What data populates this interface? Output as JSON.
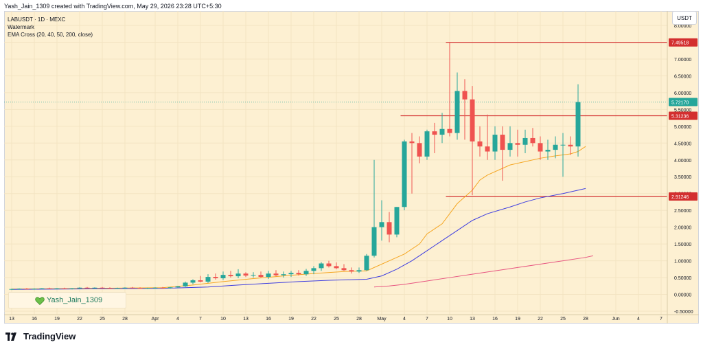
{
  "header": {
    "credit": "Yash_Jain_1309 created with TradingView.com, May 29, 2026 23:28 UTC+5:30"
  },
  "legend": {
    "symbol": "LABUSDT · 1D · MEXC",
    "watermark": "Watermark",
    "indicator": "EMA Cross (20, 40, 50, 200, close)"
  },
  "currency_badge": "USDT",
  "watermark_label": "Yash_Jain_1309",
  "footer": {
    "brand": "TradingView"
  },
  "colors": {
    "up": "#26a69a",
    "down": "#ef5350",
    "ema_fast": "#f5a623",
    "ema_mid": "#3d3de0",
    "ema_slow": "#e75480",
    "level_line": "#d32f2f",
    "background": "#fdf0d2"
  },
  "chart_data": {
    "type": "candlestick",
    "ylim": [
      -0.5,
      8.0
    ],
    "y_ticks": [
      "-0.50000",
      "0.00000",
      "0.50000",
      "1.00000",
      "1.50000",
      "2.00000",
      "2.50000",
      "3.00000",
      "3.50000",
      "4.00000",
      "4.50000",
      "5.00000",
      "5.50000",
      "6.00000",
      "6.50000",
      "7.00000",
      "7.50000",
      "8.00000"
    ],
    "x_ticks": [
      {
        "i": 0,
        "label": "13"
      },
      {
        "i": 3,
        "label": "16"
      },
      {
        "i": 6,
        "label": "19"
      },
      {
        "i": 9,
        "label": "22"
      },
      {
        "i": 12,
        "label": "25"
      },
      {
        "i": 15,
        "label": "28"
      },
      {
        "i": 19,
        "label": "Apr"
      },
      {
        "i": 22,
        "label": "4"
      },
      {
        "i": 25,
        "label": "7"
      },
      {
        "i": 28,
        "label": "10"
      },
      {
        "i": 31,
        "label": "13"
      },
      {
        "i": 34,
        "label": "16"
      },
      {
        "i": 37,
        "label": "19"
      },
      {
        "i": 40,
        "label": "22"
      },
      {
        "i": 43,
        "label": "25"
      },
      {
        "i": 46,
        "label": "28"
      },
      {
        "i": 49,
        "label": "May"
      },
      {
        "i": 52,
        "label": "4"
      },
      {
        "i": 55,
        "label": "7"
      },
      {
        "i": 58,
        "label": "10"
      },
      {
        "i": 61,
        "label": "13"
      },
      {
        "i": 64,
        "label": "16"
      },
      {
        "i": 67,
        "label": "19"
      },
      {
        "i": 70,
        "label": "22"
      },
      {
        "i": 73,
        "label": "25"
      },
      {
        "i": 76,
        "label": "28"
      },
      {
        "i": 80,
        "label": "Jun"
      },
      {
        "i": 83,
        "label": "4"
      },
      {
        "i": 86,
        "label": "7"
      }
    ],
    "candles": [
      [
        0.15,
        0.17,
        0.13,
        0.16
      ],
      [
        0.16,
        0.18,
        0.14,
        0.17
      ],
      [
        0.17,
        0.19,
        0.15,
        0.16
      ],
      [
        0.16,
        0.18,
        0.14,
        0.17
      ],
      [
        0.17,
        0.19,
        0.15,
        0.18
      ],
      [
        0.18,
        0.2,
        0.16,
        0.17
      ],
      [
        0.17,
        0.19,
        0.15,
        0.18
      ],
      [
        0.18,
        0.2,
        0.16,
        0.17
      ],
      [
        0.17,
        0.19,
        0.15,
        0.18
      ],
      [
        0.18,
        0.21,
        0.16,
        0.2
      ],
      [
        0.2,
        0.22,
        0.18,
        0.19
      ],
      [
        0.19,
        0.21,
        0.17,
        0.2
      ],
      [
        0.2,
        0.22,
        0.18,
        0.19
      ],
      [
        0.19,
        0.21,
        0.17,
        0.18
      ],
      [
        0.18,
        0.2,
        0.16,
        0.19
      ],
      [
        0.19,
        0.21,
        0.17,
        0.2
      ],
      [
        0.2,
        0.22,
        0.18,
        0.19
      ],
      [
        0.19,
        0.21,
        0.17,
        0.18
      ],
      [
        0.18,
        0.2,
        0.16,
        0.19
      ],
      [
        0.19,
        0.21,
        0.17,
        0.2
      ],
      [
        0.2,
        0.22,
        0.18,
        0.19
      ],
      [
        0.19,
        0.22,
        0.17,
        0.21
      ],
      [
        0.21,
        0.25,
        0.19,
        0.24
      ],
      [
        0.24,
        0.38,
        0.22,
        0.35
      ],
      [
        0.35,
        0.45,
        0.3,
        0.42
      ],
      [
        0.42,
        0.55,
        0.36,
        0.38
      ],
      [
        0.38,
        0.6,
        0.34,
        0.52
      ],
      [
        0.52,
        0.62,
        0.44,
        0.48
      ],
      [
        0.48,
        0.68,
        0.43,
        0.58
      ],
      [
        0.58,
        0.7,
        0.5,
        0.54
      ],
      [
        0.54,
        0.75,
        0.48,
        0.62
      ],
      [
        0.62,
        0.66,
        0.52,
        0.56
      ],
      [
        0.56,
        0.66,
        0.5,
        0.58
      ],
      [
        0.58,
        0.68,
        0.5,
        0.52
      ],
      [
        0.52,
        0.7,
        0.46,
        0.62
      ],
      [
        0.62,
        0.72,
        0.54,
        0.57
      ],
      [
        0.57,
        0.68,
        0.5,
        0.6
      ],
      [
        0.6,
        0.7,
        0.52,
        0.64
      ],
      [
        0.64,
        0.72,
        0.56,
        0.6
      ],
      [
        0.6,
        0.76,
        0.55,
        0.7
      ],
      [
        0.7,
        0.84,
        0.6,
        0.78
      ],
      [
        0.78,
        0.96,
        0.7,
        0.92
      ],
      [
        0.92,
        1.0,
        0.8,
        0.84
      ],
      [
        0.84,
        0.95,
        0.75,
        0.78
      ],
      [
        0.78,
        0.9,
        0.7,
        0.72
      ],
      [
        0.72,
        0.8,
        0.62,
        0.68
      ],
      [
        0.68,
        0.8,
        0.64,
        0.72
      ],
      [
        0.72,
        1.2,
        0.7,
        1.15
      ],
      [
        1.15,
        4.0,
        1.1,
        2.0
      ],
      [
        2.0,
        2.8,
        1.6,
        2.15
      ],
      [
        2.15,
        2.45,
        1.55,
        1.78
      ],
      [
        1.78,
        2.6,
        1.7,
        2.6
      ],
      [
        2.6,
        4.6,
        2.5,
        4.55
      ],
      [
        4.55,
        4.8,
        3.0,
        4.5
      ],
      [
        4.5,
        4.7,
        3.9,
        4.1
      ],
      [
        4.1,
        4.9,
        4.0,
        4.85
      ],
      [
        4.85,
        5.1,
        4.2,
        4.75
      ],
      [
        4.75,
        5.4,
        4.5,
        4.92
      ],
      [
        4.92,
        7.5,
        4.7,
        4.8
      ],
      [
        4.8,
        6.6,
        4.6,
        6.05
      ],
      [
        6.05,
        6.4,
        4.6,
        5.8
      ],
      [
        5.8,
        6.2,
        2.95,
        4.55
      ],
      [
        4.55,
        5.0,
        4.1,
        4.4
      ],
      [
        4.4,
        5.35,
        4.0,
        4.25
      ],
      [
        4.25,
        5.0,
        4.0,
        4.75
      ],
      [
        4.75,
        5.0,
        3.38,
        4.3
      ],
      [
        4.3,
        5.0,
        4.1,
        4.5
      ],
      [
        4.5,
        4.9,
        4.1,
        4.45
      ],
      [
        4.45,
        4.9,
        4.2,
        4.65
      ],
      [
        4.65,
        4.95,
        4.4,
        4.5
      ],
      [
        4.5,
        4.7,
        4.0,
        4.25
      ],
      [
        4.25,
        4.6,
        4.0,
        4.3
      ],
      [
        4.3,
        4.7,
        4.05,
        4.45
      ],
      [
        4.45,
        4.8,
        3.5,
        4.45
      ],
      [
        4.45,
        4.7,
        4.15,
        4.4
      ],
      [
        4.4,
        6.25,
        4.1,
        5.72
      ]
    ],
    "ema_fast": [
      [
        0,
        0.16
      ],
      [
        20,
        0.2
      ],
      [
        24,
        0.28
      ],
      [
        28,
        0.38
      ],
      [
        32,
        0.47
      ],
      [
        36,
        0.55
      ],
      [
        40,
        0.62
      ],
      [
        44,
        0.68
      ],
      [
        47,
        0.7
      ],
      [
        48,
        0.8
      ],
      [
        50,
        1.0
      ],
      [
        52,
        1.2
      ],
      [
        54,
        1.5
      ],
      [
        55,
        1.8
      ],
      [
        57,
        2.1
      ],
      [
        59,
        2.7
      ],
      [
        61,
        3.1
      ],
      [
        62,
        3.4
      ],
      [
        63,
        3.55
      ],
      [
        65,
        3.75
      ],
      [
        66,
        3.85
      ],
      [
        68,
        3.95
      ],
      [
        70,
        4.05
      ],
      [
        72,
        4.12
      ],
      [
        74,
        4.18
      ],
      [
        75,
        4.25
      ],
      [
        76,
        4.4
      ]
    ],
    "ema_mid": [
      [
        0,
        0.15
      ],
      [
        20,
        0.18
      ],
      [
        26,
        0.22
      ],
      [
        30,
        0.28
      ],
      [
        34,
        0.33
      ],
      [
        38,
        0.38
      ],
      [
        42,
        0.42
      ],
      [
        47,
        0.45
      ],
      [
        49,
        0.55
      ],
      [
        51,
        0.75
      ],
      [
        53,
        1.0
      ],
      [
        55,
        1.3
      ],
      [
        57,
        1.6
      ],
      [
        59,
        1.9
      ],
      [
        61,
        2.2
      ],
      [
        63,
        2.4
      ],
      [
        66,
        2.6
      ],
      [
        68,
        2.75
      ],
      [
        70,
        2.87
      ],
      [
        73,
        3.0
      ],
      [
        76,
        3.15
      ]
    ],
    "ema_slow": [
      [
        48,
        0.22
      ],
      [
        50,
        0.25
      ],
      [
        52,
        0.3
      ],
      [
        55,
        0.4
      ],
      [
        58,
        0.5
      ],
      [
        61,
        0.6
      ],
      [
        64,
        0.7
      ],
      [
        67,
        0.8
      ],
      [
        70,
        0.9
      ],
      [
        73,
        1.0
      ],
      [
        76,
        1.1
      ],
      [
        77,
        1.15
      ]
    ],
    "levels": [
      {
        "value": 7.49518,
        "label": "7.49518",
        "x_start": 57.5
      },
      {
        "value": 5.31236,
        "label": "5.31236",
        "x_start": 51.5
      },
      {
        "value": 2.91246,
        "label": "2.91246",
        "x_start": 57.5
      }
    ],
    "last_price": {
      "value": 5.7217,
      "label": "5.72170"
    }
  }
}
